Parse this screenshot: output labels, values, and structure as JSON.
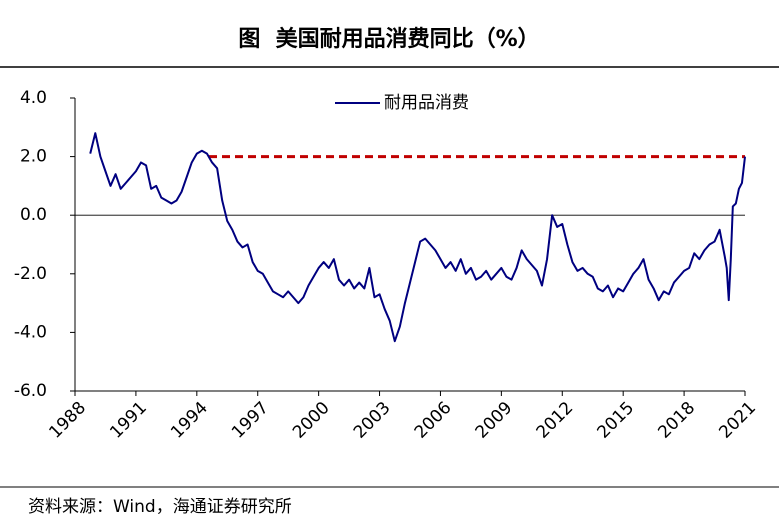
{
  "chart_data": {
    "type": "line",
    "title": "图  美国耐用品消费同比（%）",
    "source": "资料来源：Wind，海通证券研究所",
    "x": [
      1988.75,
      1989,
      1989.25,
      1989.5,
      1989.75,
      1990,
      1990.25,
      1990.5,
      1990.75,
      1991,
      1991.25,
      1991.5,
      1991.75,
      1992,
      1992.25,
      1992.5,
      1992.75,
      1993,
      1993.25,
      1993.5,
      1993.75,
      1994,
      1994.25,
      1994.5,
      1994.75,
      1995,
      1995.25,
      1995.5,
      1995.75,
      1996,
      1996.25,
      1996.5,
      1996.75,
      1997,
      1997.25,
      1997.5,
      1997.75,
      1998,
      1998.25,
      1998.5,
      1998.75,
      1999,
      1999.25,
      1999.5,
      1999.75,
      2000,
      2000.25,
      2000.5,
      2000.75,
      2001,
      2001.25,
      2001.5,
      2001.75,
      2002,
      2002.25,
      2002.5,
      2002.75,
      2003,
      2003.25,
      2003.5,
      2003.75,
      2004,
      2004.25,
      2004.5,
      2004.75,
      2005,
      2005.25,
      2005.5,
      2005.75,
      2006,
      2006.25,
      2006.5,
      2006.75,
      2007,
      2007.25,
      2007.5,
      2007.75,
      2008,
      2008.25,
      2008.5,
      2008.75,
      2009,
      2009.25,
      2009.5,
      2009.75,
      2010,
      2010.25,
      2010.5,
      2010.75,
      2011,
      2011.25,
      2011.5,
      2011.75,
      2012,
      2012.25,
      2012.5,
      2012.75,
      2013,
      2013.25,
      2013.5,
      2013.75,
      2014,
      2014.25,
      2014.5,
      2014.75,
      2015,
      2015.25,
      2015.5,
      2015.75,
      2016,
      2016.25,
      2016.5,
      2016.75,
      2017,
      2017.25,
      2017.5,
      2017.75,
      2018,
      2018.25,
      2018.5,
      2018.75,
      2019,
      2019.25,
      2019.5,
      2019.75,
      2020,
      2020.1,
      2020.2,
      2020.3,
      2020.4,
      2020.55,
      2020.7,
      2020.85,
      2021
    ],
    "series": [
      {
        "name": "耐用品消费",
        "color": "#000080",
        "values": [
          2.1,
          2.8,
          2.0,
          1.5,
          1.0,
          1.4,
          0.9,
          1.1,
          1.3,
          1.5,
          1.8,
          1.7,
          0.9,
          1.0,
          0.6,
          0.5,
          0.4,
          0.5,
          0.8,
          1.3,
          1.8,
          2.1,
          2.2,
          2.1,
          1.8,
          1.6,
          0.5,
          -0.2,
          -0.5,
          -0.9,
          -1.1,
          -1.0,
          -1.6,
          -1.9,
          -2.0,
          -2.3,
          -2.6,
          -2.7,
          -2.8,
          -2.6,
          -2.8,
          -3.0,
          -2.8,
          -2.4,
          -2.1,
          -1.8,
          -1.6,
          -1.8,
          -1.5,
          -2.2,
          -2.4,
          -2.2,
          -2.5,
          -2.3,
          -2.5,
          -1.8,
          -2.8,
          -2.7,
          -3.2,
          -3.6,
          -4.3,
          -3.8,
          -3.0,
          -2.3,
          -1.6,
          -0.9,
          -0.8,
          -1.0,
          -1.2,
          -1.5,
          -1.8,
          -1.6,
          -1.9,
          -1.5,
          -2.0,
          -1.8,
          -2.2,
          -2.1,
          -1.9,
          -2.2,
          -2.0,
          -1.8,
          -2.1,
          -2.2,
          -1.8,
          -1.2,
          -1.5,
          -1.7,
          -1.9,
          -2.4,
          -1.5,
          0.0,
          -0.4,
          -0.3,
          -1.0,
          -1.6,
          -1.9,
          -1.8,
          -2.0,
          -2.1,
          -2.5,
          -2.6,
          -2.4,
          -2.8,
          -2.5,
          -2.6,
          -2.3,
          -2.0,
          -1.8,
          -1.5,
          -2.2,
          -2.5,
          -2.9,
          -2.6,
          -2.7,
          -2.3,
          -2.1,
          -1.9,
          -1.8,
          -1.3,
          -1.5,
          -1.2,
          -1.0,
          -0.9,
          -0.5,
          -1.4,
          -1.8,
          -2.9,
          -1.5,
          0.3,
          0.4,
          0.9,
          1.1,
          2.0
        ]
      }
    ],
    "reference_line": {
      "value": 2,
      "x_start": 1994.6,
      "x_end": 2021,
      "color": "#c00000",
      "dashed": true
    },
    "xlim": [
      1988,
      2021
    ],
    "xticks": [
      1988,
      1991,
      1994,
      1997,
      2000,
      2003,
      2006,
      2009,
      2012,
      2015,
      2018,
      2021
    ],
    "ylim": [
      -6,
      4
    ],
    "yticks": [
      {
        "value": 4,
        "label": "4.0"
      },
      {
        "value": 2,
        "label": "2.0"
      },
      {
        "value": 0,
        "label": "0.0"
      },
      {
        "value": -2,
        "label": "-2.0"
      },
      {
        "value": -4,
        "label": "-4.0"
      },
      {
        "value": -6,
        "label": "-6.0"
      }
    ],
    "legend": "top"
  }
}
